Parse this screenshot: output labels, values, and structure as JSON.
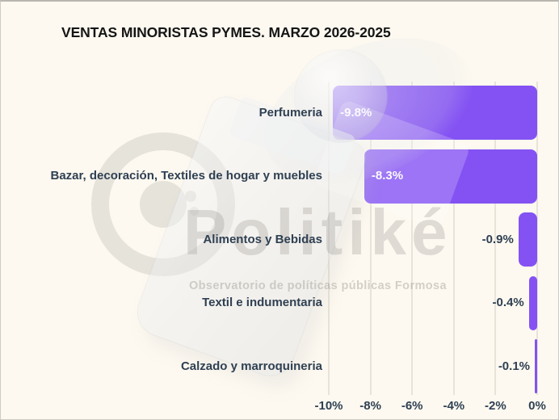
{
  "title": "VENTAS MINORISTAS PYMES. MARZO 2026-2025",
  "watermark": {
    "brand": "Politiké",
    "subtitle": "Observatorio de políticas públicas Formosa"
  },
  "chart_data": {
    "type": "bar",
    "orientation": "horizontal",
    "title": "VENTAS MINORISTAS PYMES. MARZO 2026-2025",
    "categories": [
      "Perfumeria",
      "Bazar, decoración, Textiles de hogar y muebles",
      "Alimentos y Bebidas",
      "Textil e indumentaria",
      "Calzado y marroquineria"
    ],
    "values": [
      -9.8,
      -8.3,
      -0.9,
      -0.4,
      -0.1
    ],
    "value_labels": [
      "-9.8%",
      "-8.3%",
      "-0.9%",
      "-0.4%",
      "-0.1%"
    ],
    "unit": "%",
    "x_tick_labels": [
      "-10%",
      "-8%",
      "-6%",
      "-4%",
      "-2%",
      "0%"
    ],
    "x_tick_values": [
      -10,
      -8,
      -6,
      -4,
      -2,
      0
    ],
    "xlim": [
      -10.3,
      0
    ],
    "grid": true,
    "legend": false,
    "bar_color": "#8452f3"
  },
  "colors": {
    "background": "#fdf9f0",
    "bar": "#8452f3",
    "title_text": "#151515",
    "label_text": "#2f4053",
    "value_inside_text": "#fbfaff",
    "gridline": "#e8e3d9",
    "watermark_gray": "#d6d4cf"
  }
}
